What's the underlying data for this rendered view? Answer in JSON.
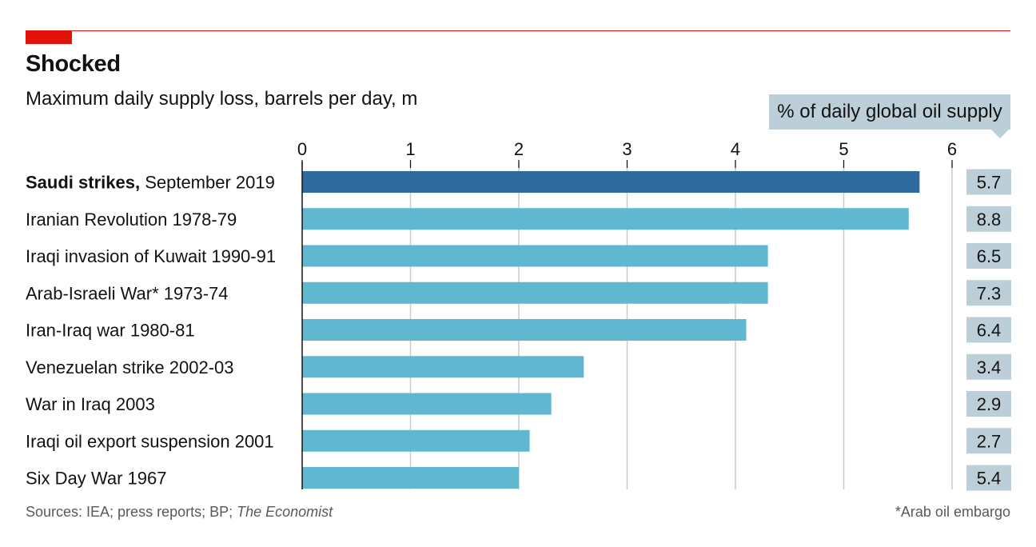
{
  "title": "Shocked",
  "subtitle": "Maximum daily supply loss, barrels per day, m",
  "pct_header": "% of daily global oil supply",
  "footer": {
    "sources_prefix": "Sources: IEA; press reports; BP; ",
    "sources_italic": "The Economist",
    "note": "*Arab oil embargo"
  },
  "colors": {
    "highlight_bar": "#2e6a9e",
    "bar": "#5fb8cf",
    "pct_box": "#bccfd8",
    "accent_red": "#e3120b"
  },
  "chart_data": {
    "type": "bar",
    "orientation": "horizontal",
    "title": "Shocked",
    "subtitle": "Maximum daily supply loss, barrels per day, m",
    "xlim": [
      0,
      6
    ],
    "xticks": [
      "0",
      "1",
      "2",
      "3",
      "4",
      "5",
      "6"
    ],
    "grid": true,
    "categories": [
      {
        "name": "Saudi strikes,",
        "period": "September 2019",
        "bold": true
      },
      {
        "name": "Iranian Revolution",
        "period": "1978-79",
        "bold": false
      },
      {
        "name": "Iraqi invasion of Kuwait",
        "period": "1990-91",
        "bold": false
      },
      {
        "name": "Arab-Israeli War*",
        "period": "1973-74",
        "bold": false
      },
      {
        "name": "Iran-Iraq war",
        "period": "1980-81",
        "bold": false
      },
      {
        "name": "Venezuelan strike",
        "period": "2002-03",
        "bold": false
      },
      {
        "name": "War in Iraq",
        "period": "2003",
        "bold": false
      },
      {
        "name": "Iraqi oil export suspension",
        "period": "2001",
        "bold": false
      },
      {
        "name": "Six Day War",
        "period": "1967",
        "bold": false
      }
    ],
    "values": [
      5.7,
      5.6,
      4.3,
      4.3,
      4.1,
      2.6,
      2.3,
      2.1,
      2.0
    ],
    "pct_of_global_supply": [
      "5.7",
      "8.8",
      "6.5",
      "7.3",
      "6.4",
      "3.4",
      "2.9",
      "2.7",
      "5.4"
    ]
  }
}
